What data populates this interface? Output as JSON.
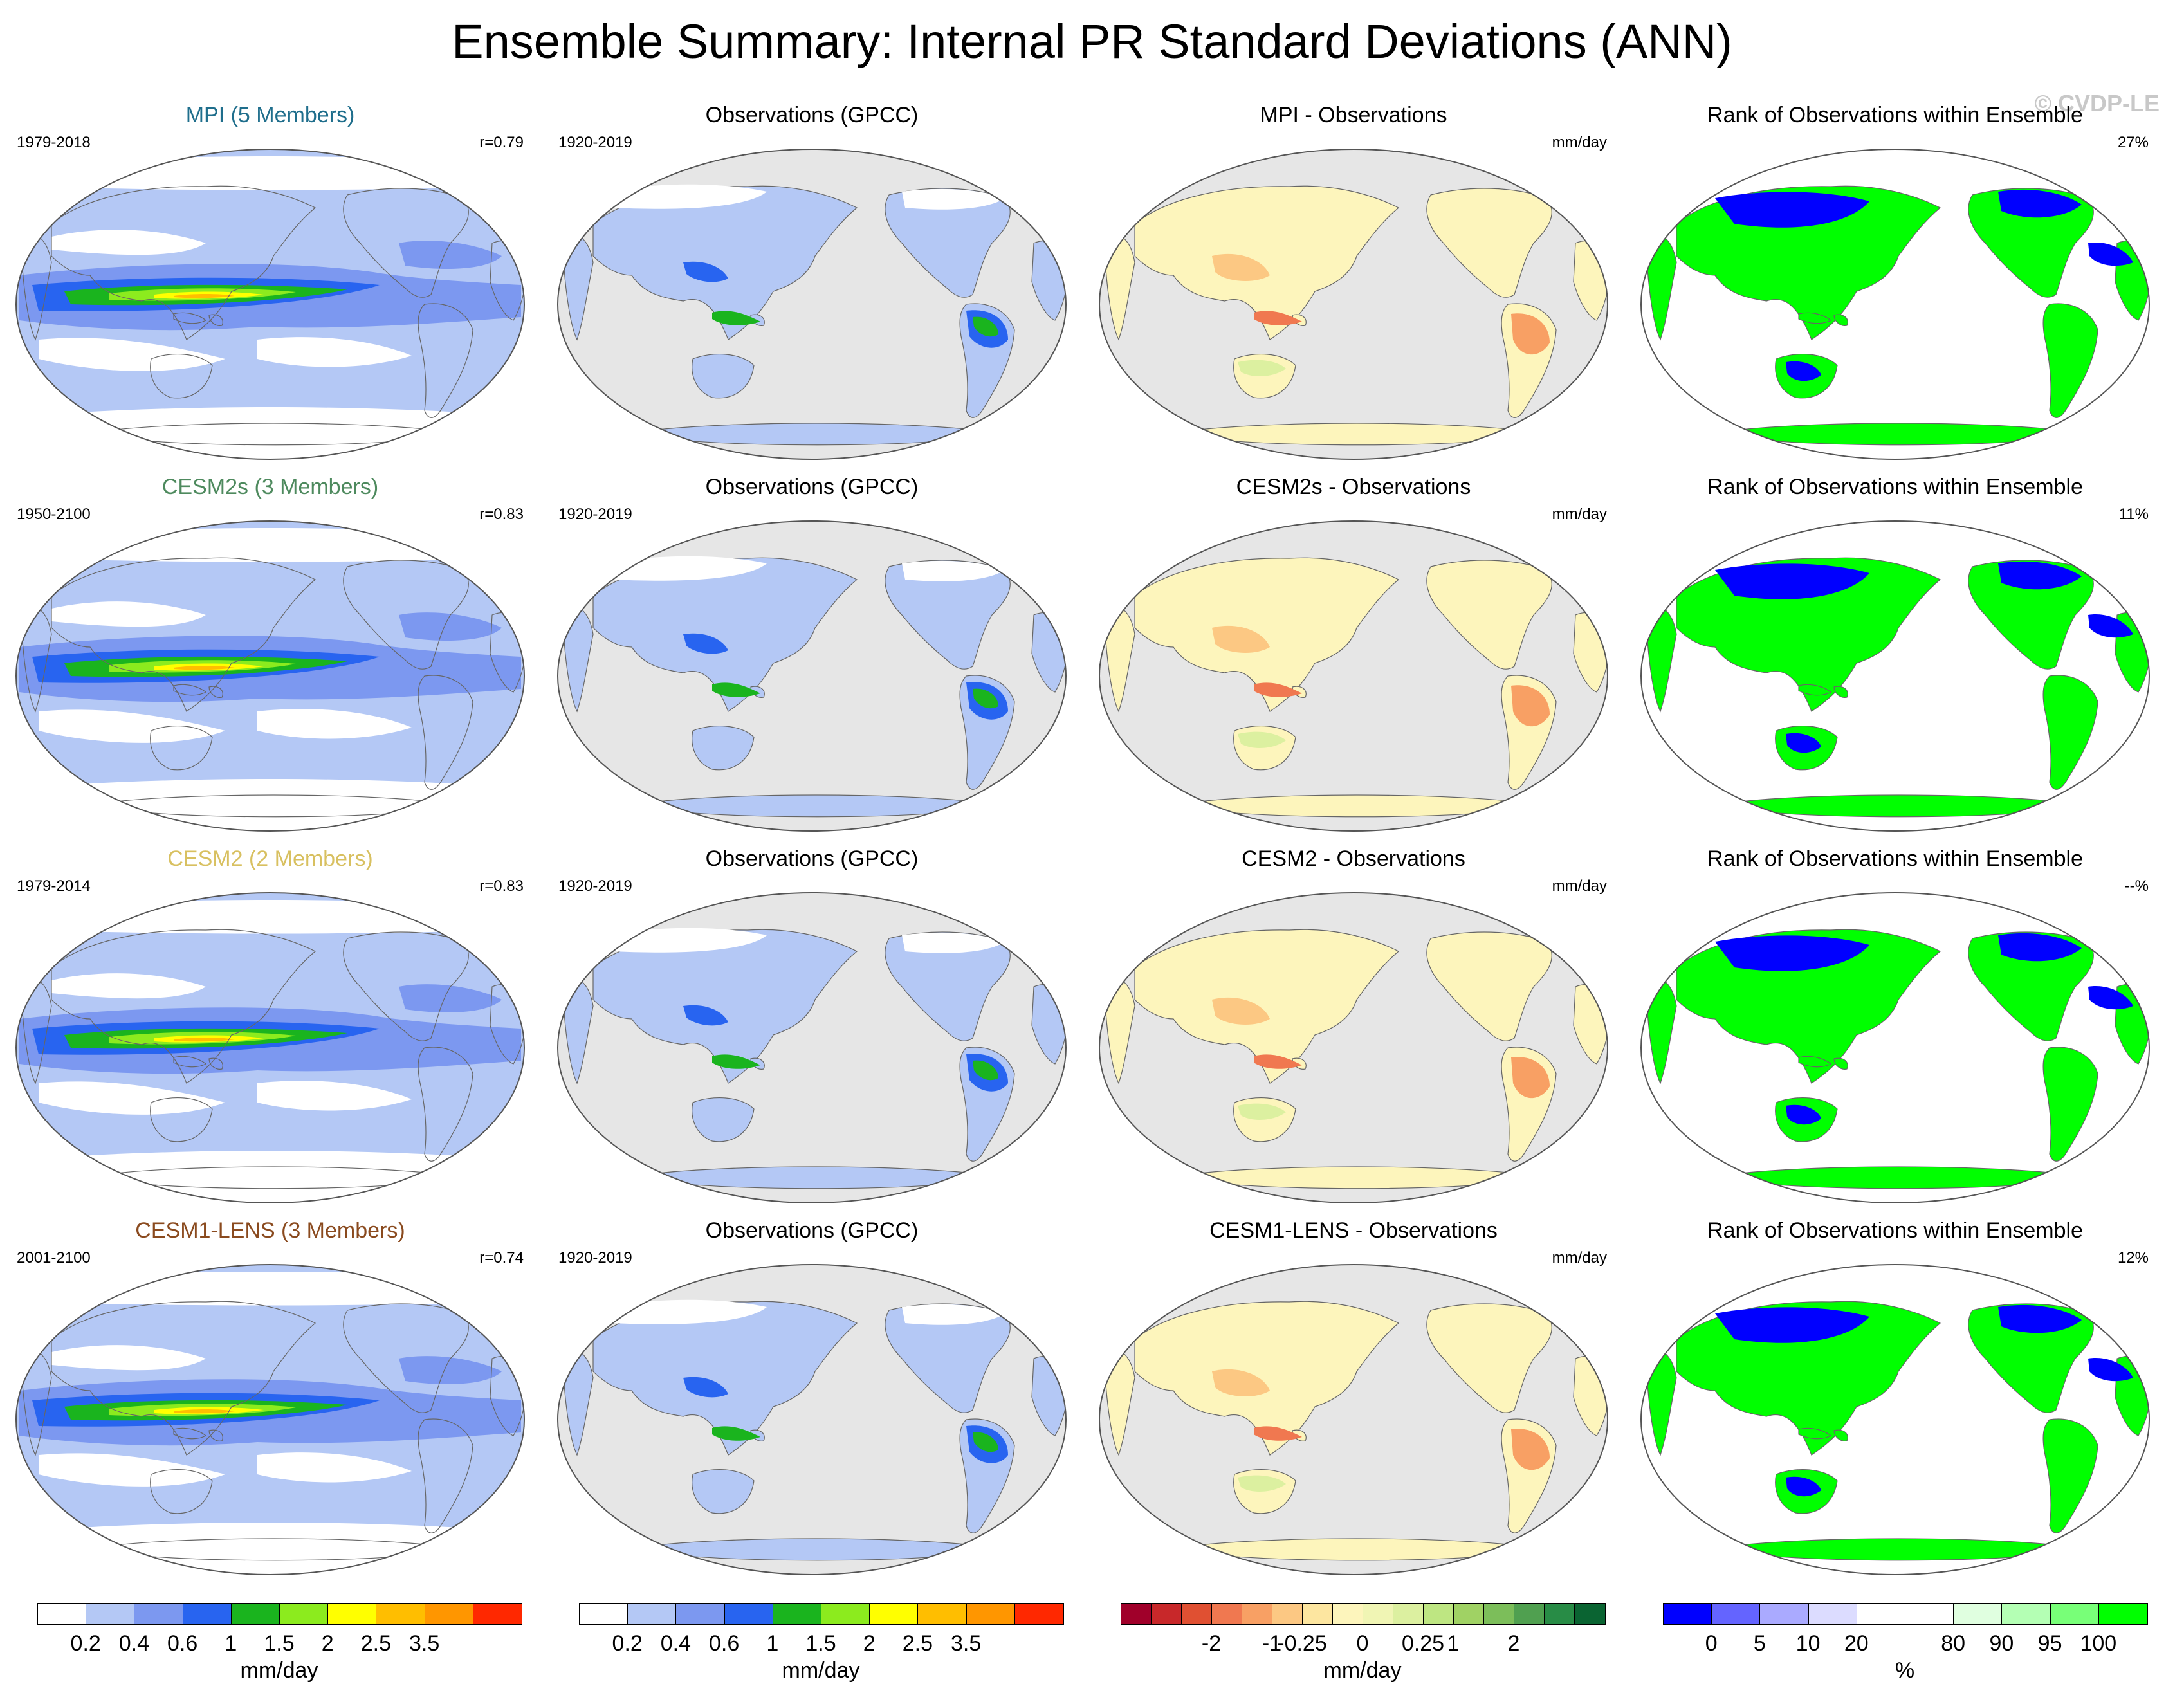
{
  "title": "Ensemble Summary: Internal PR Standard Deviations (ANN)",
  "watermark": "© CVDP-LE",
  "colors": {
    "ocean_gray": "#e6e6e6",
    "pr_scale": [
      "#ffffff",
      "#b4c8f5",
      "#7c98f0",
      "#2864f0",
      "#1ab41e",
      "#8ceb1e",
      "#ffff00",
      "#ffbe00",
      "#ff9600",
      "#ff2800"
    ],
    "diff_scale": [
      "#a0002a",
      "#c8282a",
      "#e05032",
      "#f07850",
      "#f8a064",
      "#fcc883",
      "#fde6a0",
      "#fdf5bc",
      "#f0f5b4",
      "#dcf0a0",
      "#bee682",
      "#a0d264",
      "#7cbe5a",
      "#50a050",
      "#288c46",
      "#0a6432"
    ],
    "rank_scale": [
      "#0000ff",
      "#6464ff",
      "#aaaaff",
      "#dcdcff",
      "#ffffff",
      "#ffffff",
      "#e0ffe0",
      "#b4ffb4",
      "#78ff78",
      "#00ff00"
    ]
  },
  "rows": [
    {
      "model_title": "MPI (5 Members)",
      "model_color": "#1f6e8c",
      "model_years": "1979-2018",
      "model_r": "r=0.79",
      "obs_title": "Observations (GPCC)",
      "obs_years": "1920-2019",
      "diff_title": "MPI - Observations",
      "diff_units": "mm/day",
      "rank_title": "Rank of Observations within Ensemble",
      "rank_pct": "27%"
    },
    {
      "model_title": "CESM2s (3 Members)",
      "model_color": "#4e8a5e",
      "model_years": "1950-2100",
      "model_r": "r=0.83",
      "obs_title": "Observations (GPCC)",
      "obs_years": "1920-2019",
      "diff_title": "CESM2s - Observations",
      "diff_units": "mm/day",
      "rank_title": "Rank of Observations within Ensemble",
      "rank_pct": "11%"
    },
    {
      "model_title": "CESM2 (2 Members)",
      "model_color": "#d8c060",
      "model_years": "1979-2014",
      "model_r": "r=0.83",
      "obs_title": "Observations (GPCC)",
      "obs_years": "1920-2019",
      "diff_title": "CESM2 - Observations",
      "diff_units": "mm/day",
      "rank_title": "Rank of Observations within Ensemble",
      "rank_pct": "--%"
    },
    {
      "model_title": "CESM1-LENS (3 Members)",
      "model_color": "#8a4a1e",
      "model_years": "2001-2100",
      "model_r": "r=0.74",
      "obs_title": "Observations (GPCC)",
      "obs_years": "1920-2019",
      "diff_title": "CESM1-LENS - Observations",
      "diff_units": "mm/day",
      "rank_title": "Rank of Observations within Ensemble",
      "rank_pct": "12%"
    }
  ],
  "colorbars": {
    "pr1": {
      "ticks": [
        "0.2",
        "0.4",
        "0.6",
        "1",
        "1.5",
        "2",
        "2.5",
        "3.5"
      ],
      "units": "mm/day"
    },
    "pr2": {
      "ticks": [
        "0.2",
        "0.4",
        "0.6",
        "1",
        "1.5",
        "2",
        "2.5",
        "3.5"
      ],
      "units": "mm/day"
    },
    "diff": {
      "ticks": [
        "-2",
        "-1",
        "-0.25",
        "0",
        "0.25",
        "1",
        "2"
      ],
      "units": "mm/day"
    },
    "rank": {
      "ticks": [
        "0",
        "5",
        "10",
        "20",
        "80",
        "90",
        "95",
        "100"
      ],
      "units": "%"
    }
  }
}
